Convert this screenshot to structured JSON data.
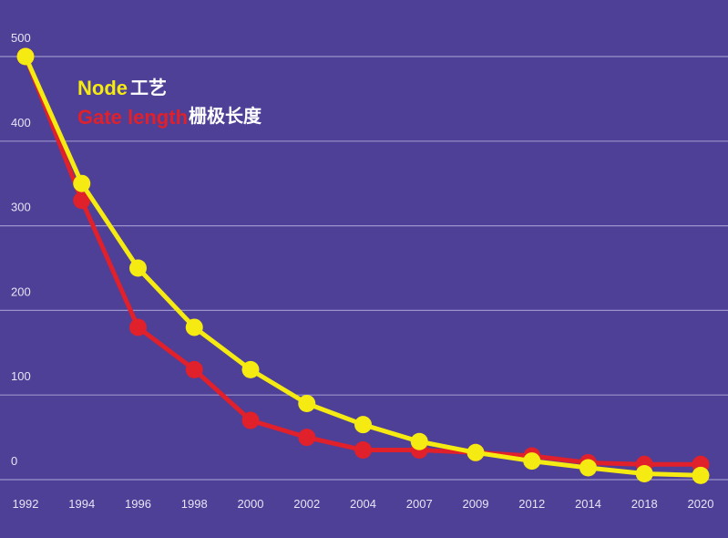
{
  "chart_data": {
    "type": "line",
    "title": "",
    "xlabel": "",
    "ylabel": "",
    "categories": [
      "1992",
      "1994",
      "1996",
      "1998",
      "2000",
      "2002",
      "2004",
      "2007",
      "2009",
      "2012",
      "2014",
      "2018",
      "2020"
    ],
    "y_ticks": [
      0,
      100,
      200,
      300,
      400,
      500
    ],
    "ylim": [
      0,
      500
    ],
    "grid": true,
    "legend_position": "top-left",
    "series": [
      {
        "name": "Node",
        "name_cn": "工艺",
        "color": "#f5ea11",
        "values": [
          500,
          350,
          250,
          180,
          130,
          90,
          65,
          45,
          32,
          22,
          14,
          7,
          5
        ]
      },
      {
        "name": "Gate length",
        "name_cn": "栅极长度",
        "color": "#e0202a",
        "values": [
          500,
          330,
          180,
          130,
          70,
          50,
          35,
          35,
          32,
          28,
          20,
          18,
          18
        ]
      }
    ],
    "background_color": "#4e3f97",
    "gridline_color": "#9c93cc"
  }
}
